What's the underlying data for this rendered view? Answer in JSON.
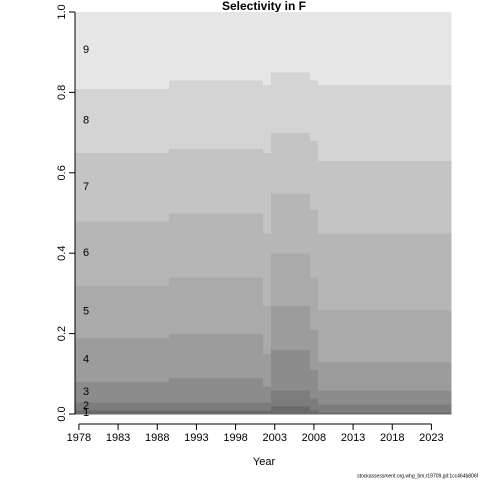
{
  "chart_data": {
    "type": "stacked-step-area",
    "title": "Selectivity in F",
    "xlabel": "Year",
    "footnote": "stockassessment.org,whg_bm,r19709,git:1cc464b806f",
    "x": [
      1978,
      1979,
      1980,
      1981,
      1982,
      1983,
      1984,
      1985,
      1986,
      1987,
      1988,
      1989,
      1990,
      1991,
      1992,
      1993,
      1994,
      1995,
      1996,
      1997,
      1998,
      1999,
      2000,
      2001,
      2002,
      2003,
      2004,
      2005,
      2006,
      2007,
      2008,
      2009,
      2010,
      2011,
      2012,
      2013,
      2014,
      2015,
      2016,
      2017,
      2018,
      2019,
      2020,
      2021,
      2022,
      2023,
      2024,
      2025
    ],
    "xlim": [
      1977.5,
      2025.5
    ],
    "xticks": [
      1978,
      1983,
      1988,
      1993,
      1998,
      2003,
      2008,
      2013,
      2018,
      2023
    ],
    "ylim": [
      0,
      1
    ],
    "yticks": [
      {
        "value": 0,
        "label": "0.0"
      },
      0.2,
      0.4,
      0.6,
      0.8,
      {
        "value": 1,
        "label": "1.0"
      }
    ],
    "series": [
      {
        "name": "1",
        "color": "#6a6a6a",
        "values": [
          0.01,
          0.01,
          0.01,
          0.01,
          0.01,
          0.01,
          0.01,
          0.01,
          0.01,
          0.01,
          0.01,
          0.01,
          0.01,
          0.01,
          0.01,
          0.01,
          0.01,
          0.01,
          0.01,
          0.01,
          0.01,
          0.01,
          0.01,
          0.01,
          0.01,
          0.02,
          0.02,
          0.02,
          0.02,
          0.02,
          0.01,
          0.005,
          0.005,
          0.005,
          0.005,
          0.005,
          0.005,
          0.005,
          0.005,
          0.005,
          0.005,
          0.005,
          0.005,
          0.005,
          0.005,
          0.005,
          0.005,
          0.005
        ]
      },
      {
        "name": "2",
        "color": "#7c7c7c",
        "values": [
          0.02,
          0.02,
          0.02,
          0.02,
          0.02,
          0.02,
          0.02,
          0.02,
          0.02,
          0.02,
          0.02,
          0.02,
          0.02,
          0.02,
          0.02,
          0.02,
          0.02,
          0.02,
          0.02,
          0.02,
          0.02,
          0.02,
          0.02,
          0.02,
          0.02,
          0.04,
          0.04,
          0.04,
          0.04,
          0.04,
          0.03,
          0.02,
          0.02,
          0.02,
          0.02,
          0.02,
          0.02,
          0.02,
          0.02,
          0.02,
          0.02,
          0.02,
          0.02,
          0.02,
          0.02,
          0.02,
          0.02,
          0.02
        ]
      },
      {
        "name": "3",
        "color": "#8c8c8c",
        "values": [
          0.05,
          0.05,
          0.05,
          0.05,
          0.05,
          0.05,
          0.05,
          0.05,
          0.05,
          0.05,
          0.05,
          0.05,
          0.06,
          0.06,
          0.06,
          0.06,
          0.06,
          0.06,
          0.06,
          0.06,
          0.06,
          0.06,
          0.06,
          0.06,
          0.04,
          0.1,
          0.1,
          0.1,
          0.1,
          0.1,
          0.07,
          0.035,
          0.035,
          0.035,
          0.035,
          0.035,
          0.035,
          0.035,
          0.035,
          0.035,
          0.035,
          0.035,
          0.035,
          0.035,
          0.035,
          0.035,
          0.035,
          0.035
        ]
      },
      {
        "name": "4",
        "color": "#9c9c9c",
        "values": [
          0.11,
          0.11,
          0.11,
          0.11,
          0.11,
          0.11,
          0.11,
          0.11,
          0.11,
          0.11,
          0.11,
          0.11,
          0.11,
          0.11,
          0.11,
          0.11,
          0.11,
          0.11,
          0.11,
          0.11,
          0.11,
          0.11,
          0.11,
          0.11,
          0.08,
          0.11,
          0.11,
          0.11,
          0.11,
          0.11,
          0.1,
          0.07,
          0.07,
          0.07,
          0.07,
          0.07,
          0.07,
          0.07,
          0.07,
          0.07,
          0.07,
          0.07,
          0.07,
          0.07,
          0.07,
          0.07,
          0.07,
          0.07
        ]
      },
      {
        "name": "5",
        "color": "#aaaaaa",
        "values": [
          0.13,
          0.13,
          0.13,
          0.13,
          0.13,
          0.13,
          0.13,
          0.13,
          0.13,
          0.13,
          0.13,
          0.13,
          0.14,
          0.14,
          0.14,
          0.14,
          0.14,
          0.14,
          0.14,
          0.14,
          0.14,
          0.14,
          0.14,
          0.14,
          0.12,
          0.13,
          0.13,
          0.13,
          0.13,
          0.13,
          0.13,
          0.13,
          0.13,
          0.13,
          0.13,
          0.13,
          0.13,
          0.13,
          0.13,
          0.13,
          0.13,
          0.13,
          0.13,
          0.13,
          0.13,
          0.13,
          0.13,
          0.13
        ]
      },
      {
        "name": "6",
        "color": "#b6b6b6",
        "values": [
          0.16,
          0.16,
          0.16,
          0.16,
          0.16,
          0.16,
          0.16,
          0.16,
          0.16,
          0.16,
          0.16,
          0.16,
          0.16,
          0.16,
          0.16,
          0.16,
          0.16,
          0.16,
          0.16,
          0.16,
          0.16,
          0.16,
          0.16,
          0.16,
          0.18,
          0.15,
          0.15,
          0.15,
          0.15,
          0.15,
          0.17,
          0.19,
          0.19,
          0.19,
          0.19,
          0.19,
          0.19,
          0.19,
          0.19,
          0.19,
          0.19,
          0.19,
          0.19,
          0.19,
          0.19,
          0.19,
          0.19,
          0.19
        ]
      },
      {
        "name": "7",
        "color": "#c4c4c4",
        "values": [
          0.17,
          0.17,
          0.17,
          0.17,
          0.17,
          0.17,
          0.17,
          0.17,
          0.17,
          0.17,
          0.17,
          0.17,
          0.16,
          0.16,
          0.16,
          0.16,
          0.16,
          0.16,
          0.16,
          0.16,
          0.16,
          0.16,
          0.16,
          0.16,
          0.2,
          0.15,
          0.15,
          0.15,
          0.15,
          0.15,
          0.17,
          0.18,
          0.18,
          0.18,
          0.18,
          0.18,
          0.18,
          0.18,
          0.18,
          0.18,
          0.18,
          0.18,
          0.18,
          0.18,
          0.18,
          0.18,
          0.18,
          0.18
        ]
      },
      {
        "name": "8",
        "color": "#d4d4d4",
        "values": [
          0.16,
          0.16,
          0.16,
          0.16,
          0.16,
          0.16,
          0.16,
          0.16,
          0.16,
          0.16,
          0.16,
          0.16,
          0.17,
          0.17,
          0.17,
          0.17,
          0.17,
          0.17,
          0.17,
          0.17,
          0.17,
          0.17,
          0.17,
          0.17,
          0.17,
          0.15,
          0.15,
          0.15,
          0.15,
          0.15,
          0.15,
          0.19,
          0.19,
          0.19,
          0.19,
          0.19,
          0.19,
          0.19,
          0.19,
          0.19,
          0.19,
          0.19,
          0.19,
          0.19,
          0.19,
          0.19,
          0.19,
          0.19
        ]
      },
      {
        "name": "9",
        "color": "#e6e6e6",
        "values": [
          0.19,
          0.19,
          0.19,
          0.19,
          0.19,
          0.19,
          0.19,
          0.19,
          0.19,
          0.19,
          0.19,
          0.19,
          0.17,
          0.17,
          0.17,
          0.17,
          0.17,
          0.17,
          0.17,
          0.17,
          0.17,
          0.17,
          0.17,
          0.17,
          0.18,
          0.15,
          0.15,
          0.15,
          0.15,
          0.15,
          0.17,
          0.18,
          0.18,
          0.18,
          0.18,
          0.18,
          0.18,
          0.18,
          0.18,
          0.18,
          0.18,
          0.18,
          0.18,
          0.18,
          0.18,
          0.18,
          0.18,
          0.18
        ]
      }
    ]
  }
}
